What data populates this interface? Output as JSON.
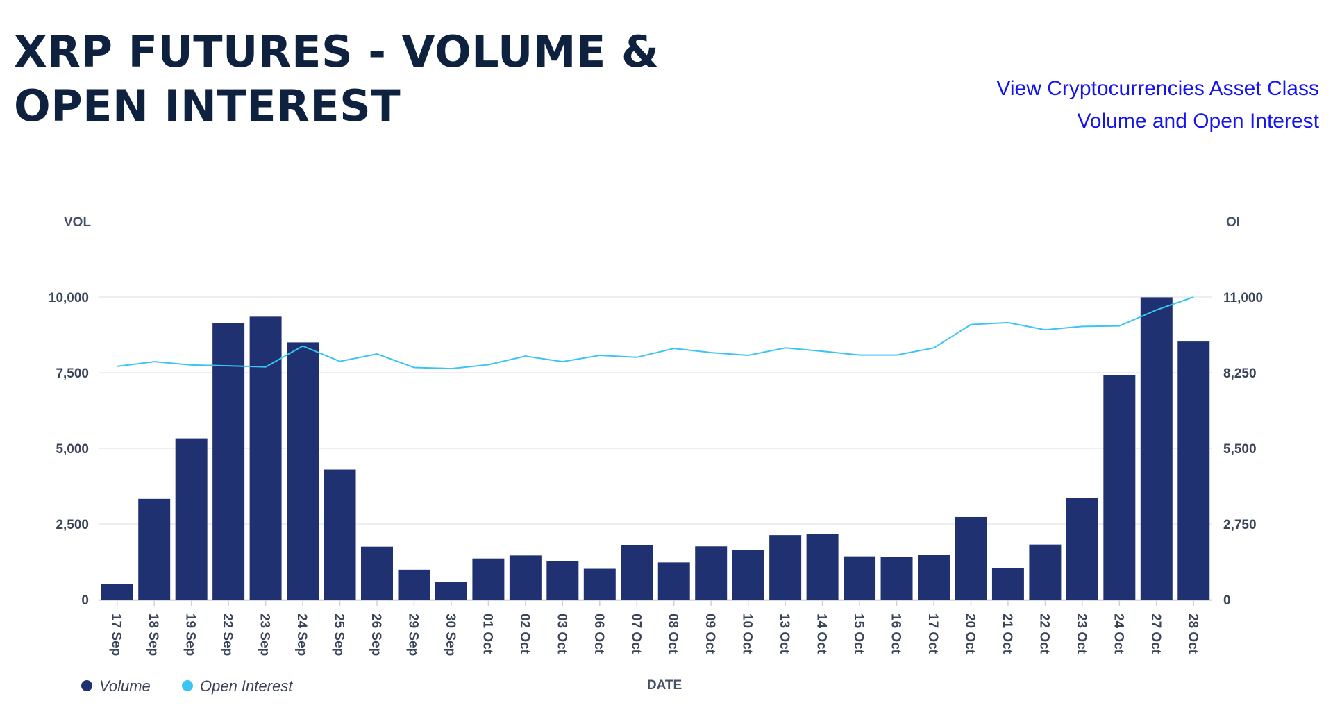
{
  "page": {
    "title": "XRP FUTURES - VOLUME & OPEN INTEREST",
    "link_line1": "View Cryptocurrencies Asset Class",
    "link_line2": "Volume and Open Interest"
  },
  "colors": {
    "title": "#0e2240",
    "link": "#1414f0",
    "volume_bar": "#1f3170",
    "open_interest_line": "#3cc4f5",
    "grid": "#e6e9ef"
  },
  "chart_data": {
    "type": "bar",
    "title": "XRP FUTURES - VOLUME & OPEN INTEREST",
    "xlabel": "DATE",
    "ylabel": "VOL",
    "y2label": "OI",
    "ylim": [
      0,
      10000
    ],
    "y2lim": [
      0,
      11000
    ],
    "yticks": [
      "0",
      "2,500",
      "5,000",
      "7,500",
      "10,000"
    ],
    "y2ticks": [
      "0",
      "2,750",
      "5,500",
      "8,250",
      "11,000"
    ],
    "grid": true,
    "legend_position": "bottom-left",
    "categories": [
      "17 Sep",
      "18 Sep",
      "19 Sep",
      "22 Sep",
      "23 Sep",
      "24 Sep",
      "25 Sep",
      "26 Sep",
      "29 Sep",
      "30 Sep",
      "01 Oct",
      "02 Oct",
      "03 Oct",
      "06 Oct",
      "07 Oct",
      "08 Oct",
      "09 Oct",
      "10 Oct",
      "13 Oct",
      "14 Oct",
      "15 Oct",
      "16 Oct",
      "17 Oct",
      "20 Oct",
      "21 Oct",
      "22 Oct",
      "23 Oct",
      "24 Oct",
      "27 Oct",
      "28 Oct"
    ],
    "series": [
      {
        "name": "Volume",
        "type": "bar",
        "axis": "left",
        "values": [
          520,
          3330,
          5330,
          9130,
          9350,
          8500,
          4300,
          1750,
          990,
          590,
          1360,
          1460,
          1270,
          1020,
          1800,
          1230,
          1760,
          1640,
          2130,
          2160,
          1430,
          1420,
          1480,
          2730,
          1050,
          1820,
          3360,
          7420,
          9990,
          8530
        ]
      },
      {
        "name": "Open Interest",
        "type": "line",
        "axis": "right",
        "values": [
          8480,
          8650,
          8530,
          8500,
          8460,
          9220,
          8660,
          8930,
          8440,
          8400,
          8540,
          8850,
          8650,
          8880,
          8810,
          9130,
          8980,
          8880,
          9150,
          9030,
          8890,
          8890,
          9150,
          10000,
          10070,
          9810,
          9930,
          9950,
          10530,
          11000
        ]
      }
    ]
  }
}
